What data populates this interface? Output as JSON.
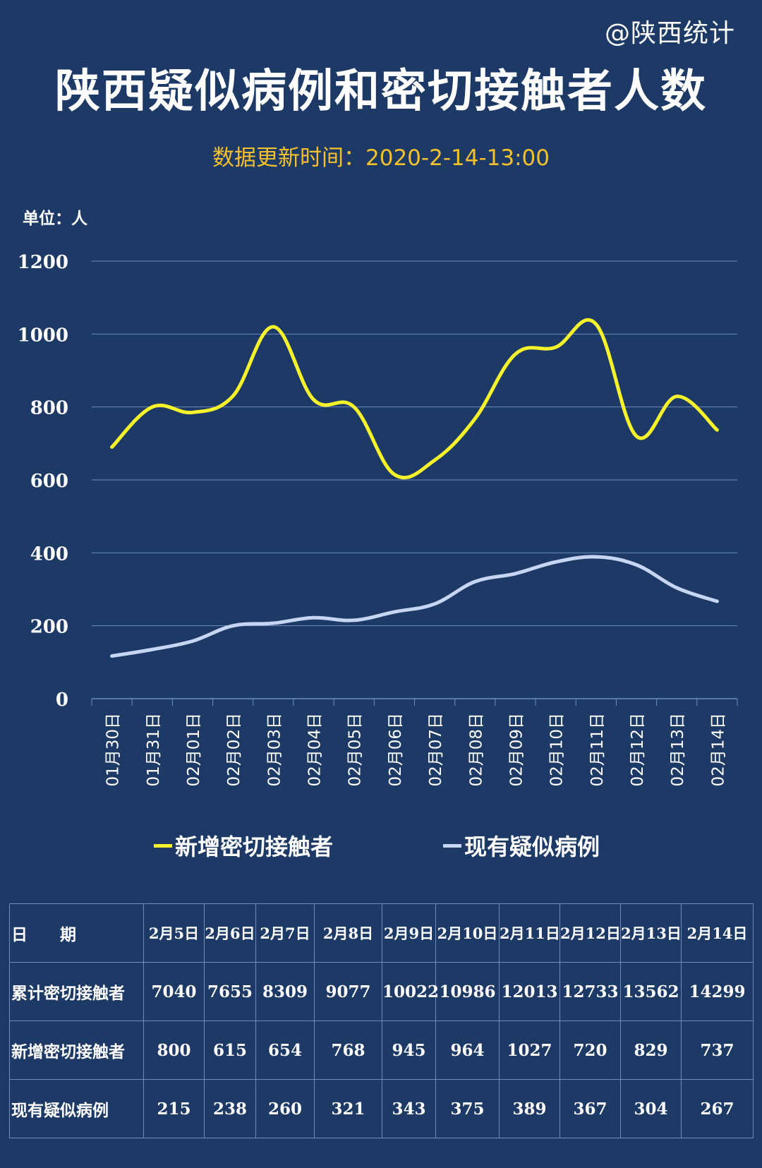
{
  "header": {
    "watermark": "@陕西统计",
    "title": "陕西疑似病例和密切接触者人数",
    "subtitle": "数据更新时间：2020-2-14-13:00",
    "unit": "单位：人"
  },
  "colors": {
    "background": "#1d3a66",
    "series_new_contacts": "#f7f32b",
    "series_suspected": "#c6d6f2",
    "subtitle": "#f5c02d"
  },
  "chart_data": {
    "type": "line",
    "categories": [
      "01月30日",
      "01月31日",
      "02月01日",
      "02月02日",
      "02月03日",
      "02月04日",
      "02月05日",
      "02月06日",
      "02月07日",
      "02月08日",
      "02月09日",
      "02月10日",
      "02月11日",
      "02月12日",
      "02月13日",
      "02月14日"
    ],
    "yticks": [
      "0",
      "200",
      "400",
      "600",
      "800",
      "1000",
      "1200"
    ],
    "ylim": [
      0,
      1200
    ],
    "grid": true,
    "legend_position": "bottom",
    "series": [
      {
        "name": "新增密切接触者",
        "values": [
          690,
          800,
          785,
          830,
          1020,
          820,
          800,
          615,
          654,
          768,
          945,
          964,
          1027,
          720,
          829,
          737
        ]
      },
      {
        "name": "现有疑似病例",
        "values": [
          117,
          135,
          158,
          200,
          207,
          222,
          215,
          238,
          260,
          321,
          343,
          375,
          389,
          367,
          304,
          267
        ]
      }
    ]
  },
  "table": {
    "header_label": "日　　期",
    "dates": [
      "2月5日",
      "2月6日",
      "2月7日",
      "2月8日",
      "2月9日",
      "2月10日",
      "2月11日",
      "2月12日",
      "2月13日",
      "2月14日"
    ],
    "rows": [
      {
        "label": "累计密切接触者",
        "values": [
          "7040",
          "7655",
          "8309",
          "9077",
          "10022",
          "10986",
          "12013",
          "12733",
          "13562",
          "14299"
        ]
      },
      {
        "label": "新增密切接触者",
        "values": [
          "800",
          "615",
          "654",
          "768",
          "945",
          "964",
          "1027",
          "720",
          "829",
          "737"
        ]
      },
      {
        "label": "现有疑似病例",
        "values": [
          "215",
          "238",
          "260",
          "321",
          "343",
          "375",
          "389",
          "367",
          "304",
          "267"
        ]
      }
    ]
  }
}
